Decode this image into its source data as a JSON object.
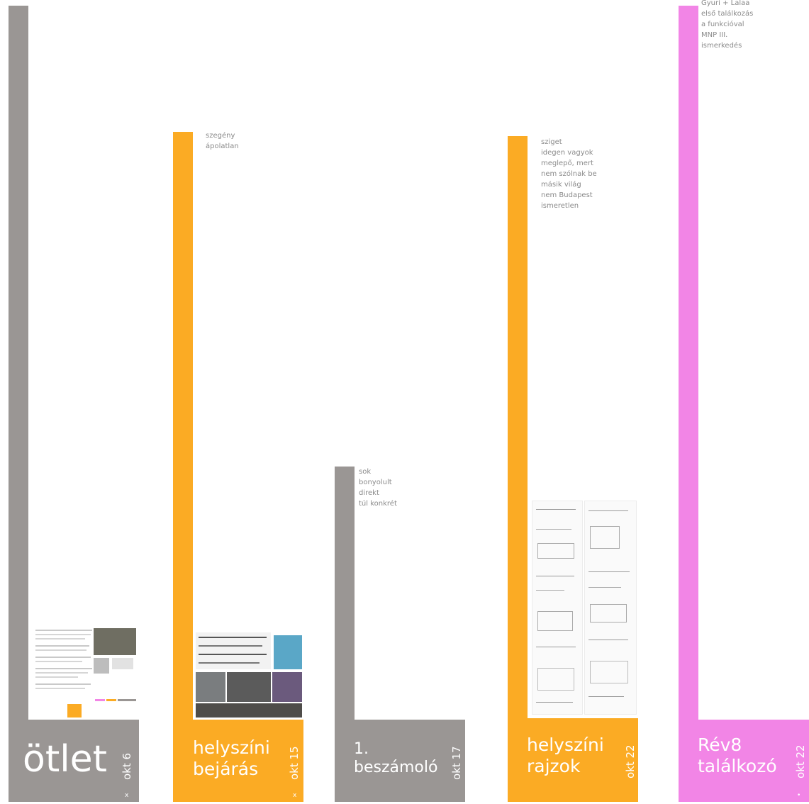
{
  "colors": {
    "gray": "#9a9694",
    "orange": "#fbab24",
    "pink": "#f285e6"
  },
  "columns": [
    {
      "title_lines": [
        "ötlet"
      ],
      "date": "okt 6",
      "mark": "x",
      "notes": []
    },
    {
      "title_lines": [
        "helyszíni",
        "bejárás"
      ],
      "date": "okt 15",
      "mark": "x",
      "notes": [
        "szegény",
        "ápolatlan"
      ]
    },
    {
      "title_lines": [
        "1.",
        "beszámoló"
      ],
      "date": "okt 17",
      "mark": "",
      "notes": [
        "sok",
        "bonyolult",
        "direkt",
        "túl konkrét"
      ]
    },
    {
      "title_lines": [
        "helyszíni",
        "rajzok"
      ],
      "date": "okt 22",
      "mark": "",
      "notes": [
        "sziget",
        "idegen vagyok",
        "meglepő, mert",
        "nem szólnak be",
        "másik világ",
        "nem Budapest",
        "ismeretlen"
      ]
    },
    {
      "title_lines": [
        "Rév8",
        "találkozó"
      ],
      "date": "okt 22",
      "mark": "•",
      "notes": [
        "Gyuri + Lalaa",
        "első találkozás",
        "a funkcióval",
        "MNP III.",
        "ismerkedés"
      ]
    }
  ]
}
